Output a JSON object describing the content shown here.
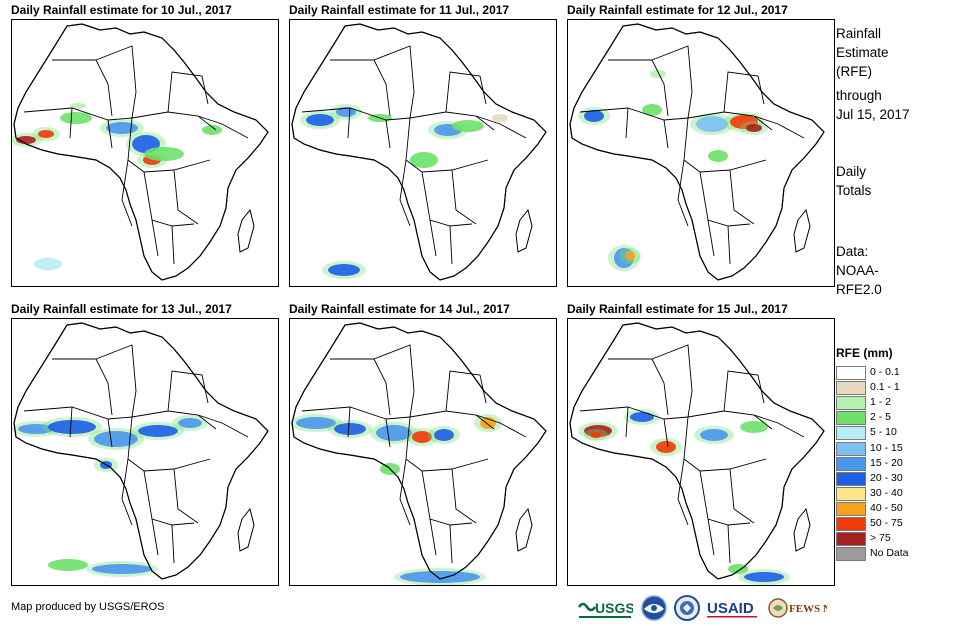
{
  "panels": [
    {
      "title": "Daily Rainfall estimate for 10 Jul., 2017"
    },
    {
      "title": "Daily Rainfall estimate for 11 Jul., 2017"
    },
    {
      "title": "Daily Rainfall estimate for 12 Jul., 2017"
    },
    {
      "title": "Daily Rainfall estimate for 13 Jul., 2017"
    },
    {
      "title": "Daily Rainfall estimate for 14 Jul., 2017"
    },
    {
      "title": "Daily Rainfall estimate for 15 Jul., 2017"
    }
  ],
  "sidebar": {
    "heading_lines": [
      "Rainfall",
      "Estimate",
      "(RFE)"
    ],
    "through_lines": [
      "through",
      "Jul 15, 2017"
    ],
    "totals_lines": [
      "Daily",
      "Totals"
    ],
    "data_lines": [
      "Data:",
      "NOAA-",
      "RFE2.0"
    ]
  },
  "legend": {
    "title": "RFE (mm)",
    "items": [
      {
        "label": "0 - 0.1",
        "color": "#ffffff"
      },
      {
        "label": "0.1 - 1",
        "color": "#e8d8be"
      },
      {
        "label": "1 - 2",
        "color": "#b6f0ae"
      },
      {
        "label": "2 - 5",
        "color": "#6ee06a"
      },
      {
        "label": "5 - 10",
        "color": "#b8ecf6"
      },
      {
        "label": "10 - 15",
        "color": "#7ec0f4"
      },
      {
        "label": "15 - 20",
        "color": "#4a96ee"
      },
      {
        "label": "20 - 30",
        "color": "#1c5ee8"
      },
      {
        "label": "30 - 40",
        "color": "#fde58a"
      },
      {
        "label": "40 - 50",
        "color": "#f8a21c"
      },
      {
        "label": "50 - 75",
        "color": "#f03a0a"
      },
      {
        "label": "> 75",
        "color": "#a82020"
      },
      {
        "label": "No Data",
        "color": "#9b9b9b"
      }
    ]
  },
  "footer": {
    "credit": "Map produced by USGS/EROS",
    "logos": [
      "usgs-logo",
      "noaa-logo",
      "dos-seal-logo",
      "usaid-logo",
      "fews-net-logo"
    ]
  }
}
